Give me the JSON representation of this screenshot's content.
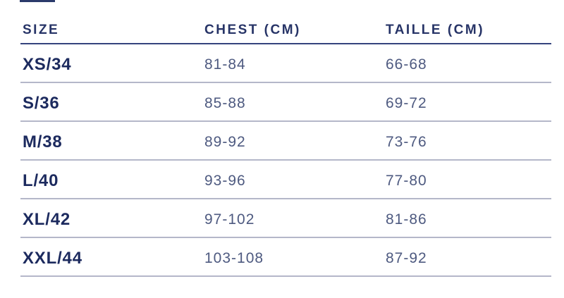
{
  "page": {
    "background": "#ffffff"
  },
  "table": {
    "columns": [
      {
        "key": "size",
        "label": "SIZE"
      },
      {
        "key": "chest",
        "label": "CHEST (CM)"
      },
      {
        "key": "taille",
        "label": "TAILLE (CM)"
      }
    ],
    "rows": [
      {
        "size": "XS/34",
        "chest": "81-84",
        "taille": "66-68"
      },
      {
        "size": "S/36",
        "chest": "85-88",
        "taille": "69-72"
      },
      {
        "size": "M/38",
        "chest": "89-92",
        "taille": "73-76"
      },
      {
        "size": "L/40",
        "chest": "93-96",
        "taille": "77-80"
      },
      {
        "size": "XL/42",
        "chest": "97-102",
        "taille": "81-86"
      },
      {
        "size": "XXL/44",
        "chest": "103-108",
        "taille": "87-92"
      }
    ],
    "colors": {
      "header_text": "#273467",
      "label_text": "#1c2a5e",
      "value_text": "#4e5a80",
      "header_rule": "#35437d",
      "row_divider": "#b4b7c9",
      "top_dash": "#2b3a6b"
    }
  }
}
